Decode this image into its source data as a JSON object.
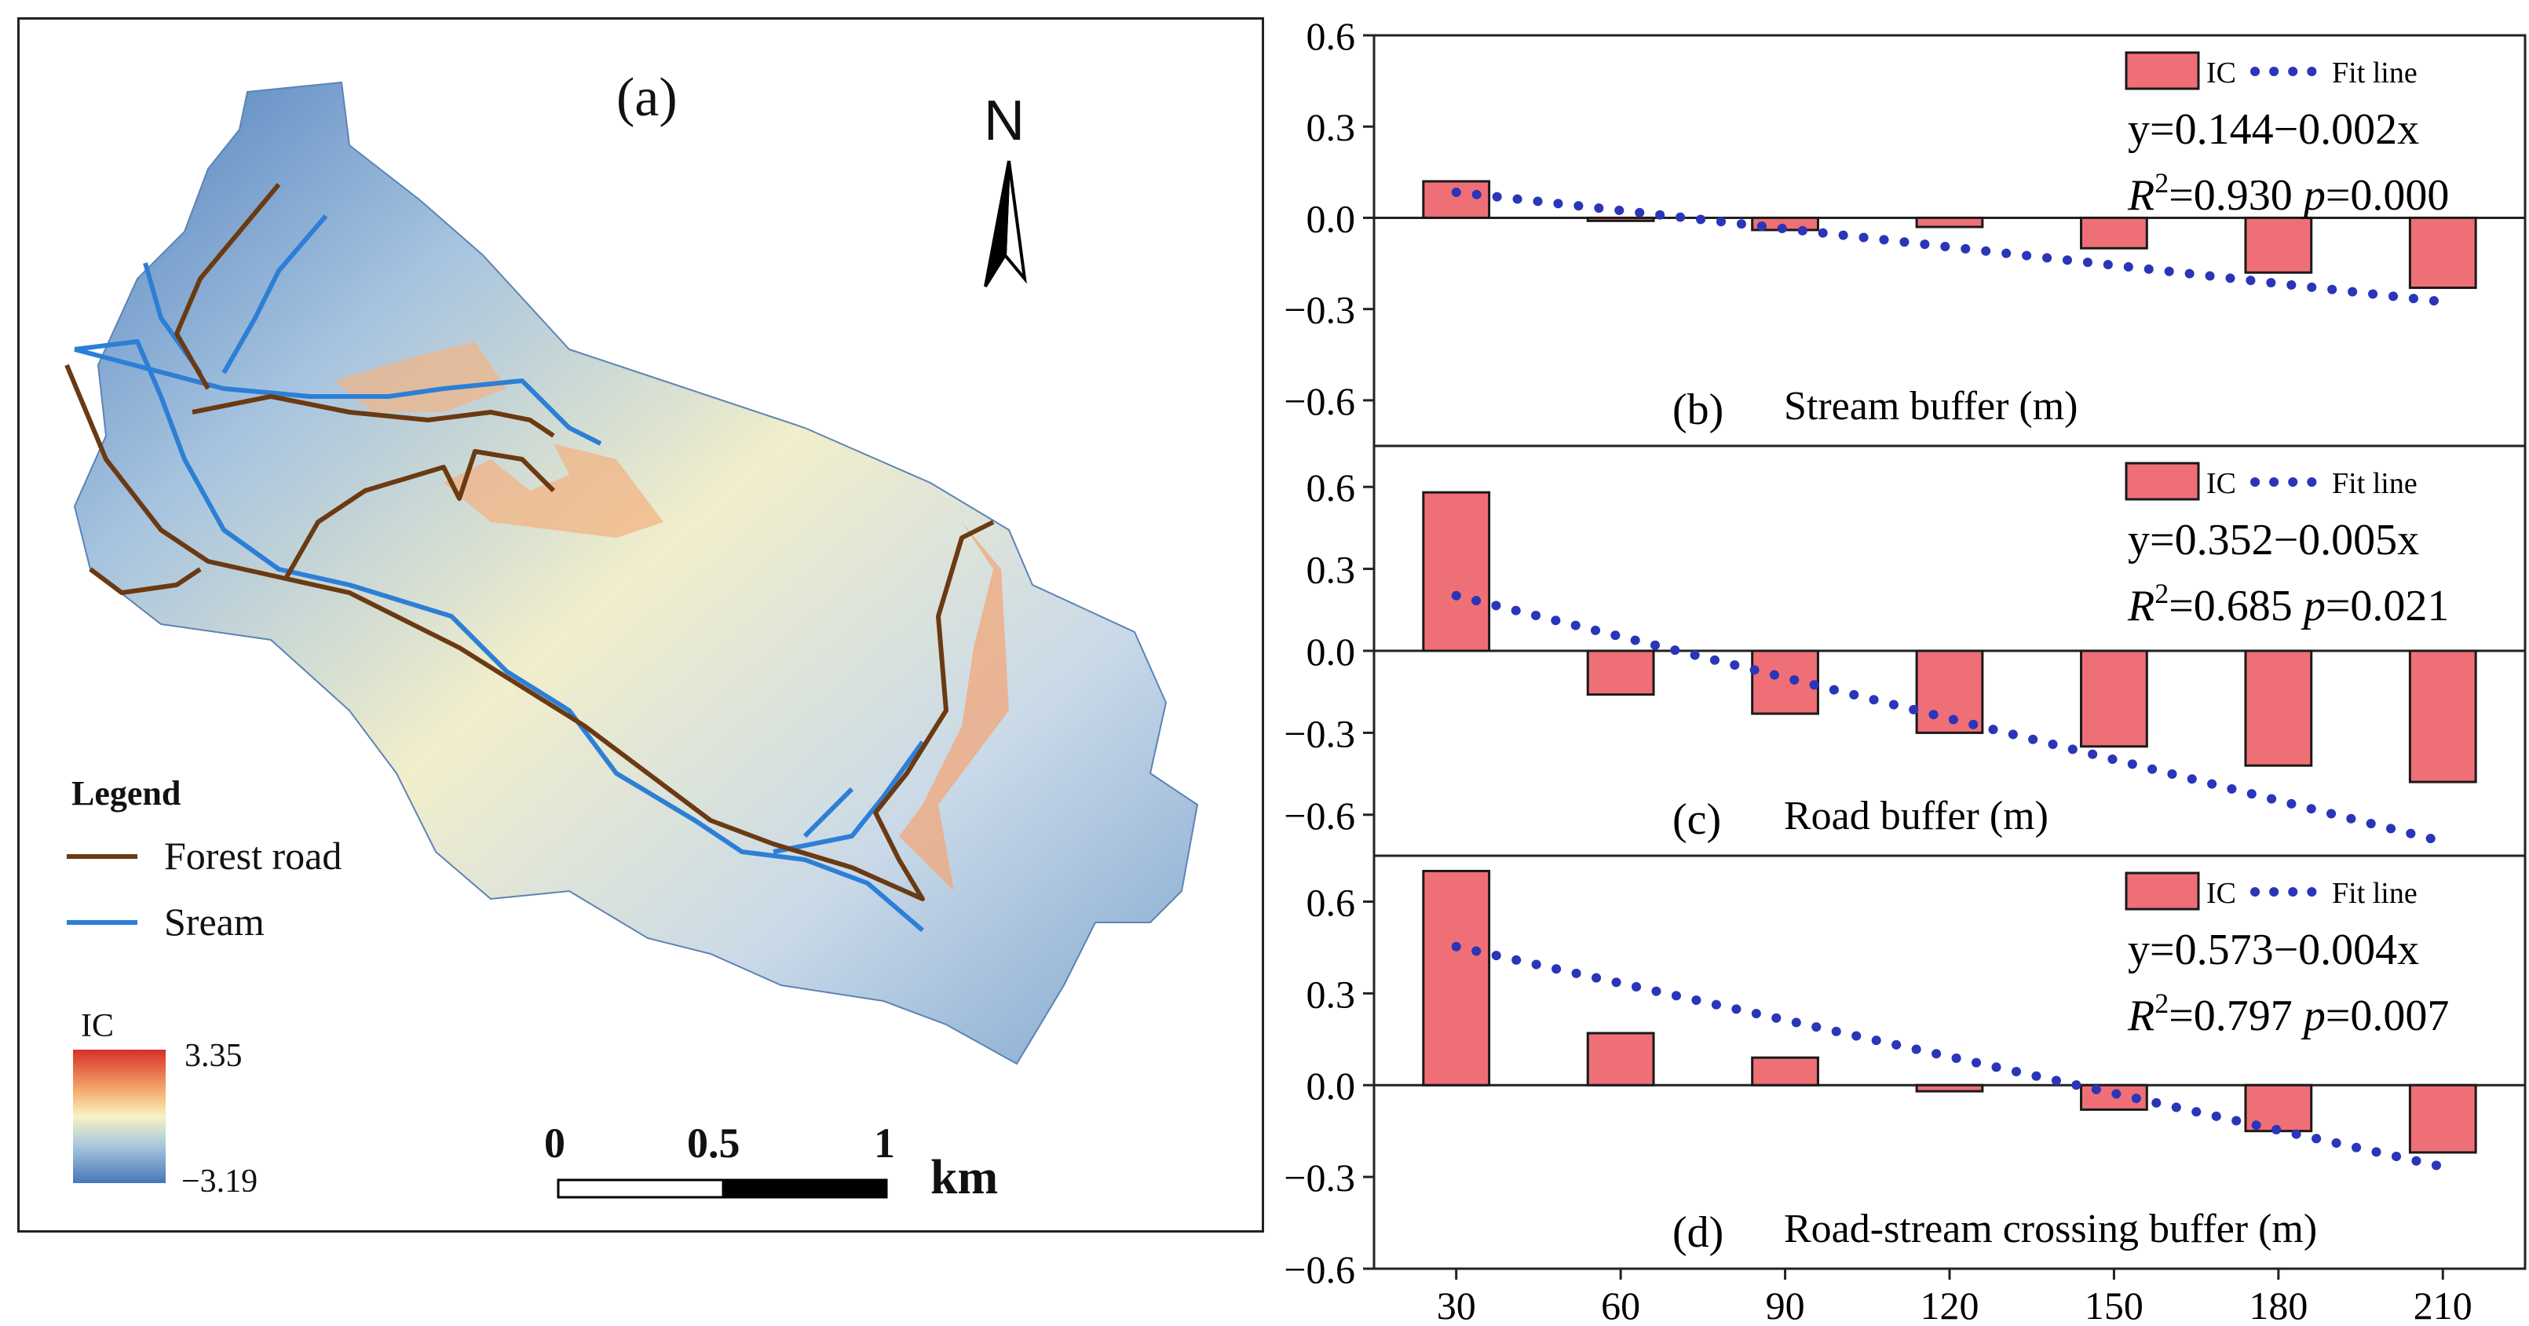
{
  "map_panel": {
    "panel_label": "(a)",
    "north_label": "N",
    "legend": {
      "title": "Legend",
      "items": [
        {
          "label": "Forest road",
          "color": "#6b3a12"
        },
        {
          "label": "Sream",
          "color": "#2d7fd6"
        }
      ],
      "colorbar_title": "IC",
      "colorbar_max": "3.35",
      "colorbar_min": "−3.19",
      "colormap": [
        "#d73027",
        "#f4a96b",
        "#f7f3c2",
        "#a9c7df",
        "#4477b8"
      ]
    },
    "scale_bar": {
      "ticks": [
        "0",
        "0.5",
        "1"
      ],
      "unit": "km"
    }
  },
  "chart_data": [
    {
      "type": "bar",
      "panel_label": "(b)",
      "xlabel": "Stream buffer (m)",
      "categories": [
        "30",
        "60",
        "90",
        "120",
        "150",
        "180",
        "210"
      ],
      "series": [
        {
          "name": "IC",
          "values": [
            0.12,
            -0.01,
            -0.04,
            -0.03,
            -0.1,
            -0.18,
            -0.23
          ],
          "color": "#ef6f77"
        }
      ],
      "fit_line": {
        "name": "Fit line",
        "intercept": 0.144,
        "slope": -0.002,
        "color": "#2a35b8"
      },
      "equation": "y=0.144−0.002x",
      "r2_value": "=0.930",
      "p_value": "=0.000",
      "ylim": [
        -0.75,
        0.6
      ],
      "yticks": [
        0.6,
        0.3,
        0.0,
        -0.3,
        -0.6
      ],
      "ytick_labels": [
        "0.6",
        "0.3",
        "0.0",
        "−0.3",
        "−0.6"
      ],
      "legend_position": "top-right"
    },
    {
      "type": "bar",
      "panel_label": "(c)",
      "xlabel": "Road buffer  (m)",
      "categories": [
        "30",
        "60",
        "90",
        "120",
        "150",
        "180",
        "210"
      ],
      "series": [
        {
          "name": "IC",
          "values": [
            0.58,
            -0.16,
            -0.23,
            -0.3,
            -0.35,
            -0.42,
            -0.48
          ],
          "color": "#ef6f77"
        }
      ],
      "fit_line": {
        "name": "Fit line",
        "intercept": 0.352,
        "slope": -0.005,
        "color": "#2a35b8"
      },
      "equation": "y=0.352−0.005x",
      "r2_value": "=0.685",
      "p_value": "=0.021",
      "ylim": [
        -0.75,
        0.75
      ],
      "yticks": [
        0.6,
        0.3,
        0.0,
        -0.3,
        -0.6
      ],
      "ytick_labels": [
        "0.6",
        "0.3",
        "0.0",
        "−0.3",
        "−0.6"
      ],
      "legend_position": "top-right"
    },
    {
      "type": "bar",
      "panel_label": "(d)",
      "xlabel": "Road-stream crossing buffer  (m)",
      "categories": [
        "30",
        "60",
        "90",
        "120",
        "150",
        "180",
        "210"
      ],
      "series": [
        {
          "name": "IC",
          "values": [
            0.7,
            0.17,
            0.09,
            -0.02,
            -0.08,
            -0.15,
            -0.22
          ],
          "color": "#ef6f77"
        }
      ],
      "fit_line": {
        "name": "Fit line",
        "intercept": 0.573,
        "slope": -0.004,
        "color": "#2a35b8"
      },
      "equation": "y=0.573−0.004x",
      "r2_value": "=0.797",
      "p_value": "=0.007",
      "ylim": [
        -0.6,
        0.75
      ],
      "yticks": [
        0.6,
        0.3,
        0.0,
        -0.3,
        -0.6
      ],
      "ytick_labels": [
        "0.6",
        "0.3",
        "0.0",
        "−0.3",
        "−0.6"
      ],
      "legend_position": "top-right"
    }
  ],
  "shared_labels": {
    "r2_symbol": "R",
    "r2_exp": "2",
    "p_symbol": "p"
  }
}
